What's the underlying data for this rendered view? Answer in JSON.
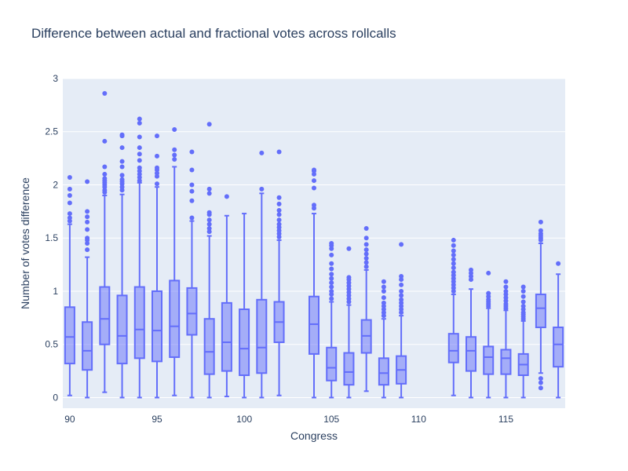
{
  "chart_data": {
    "type": "box",
    "title": "Difference between actual and fractional votes across rollcalls",
    "xlabel": "Congress",
    "ylabel": "Number of votes difference",
    "xlim": [
      89.6,
      118.4
    ],
    "ylim": [
      -0.1,
      3.0
    ],
    "xticks": [
      90,
      95,
      100,
      105,
      110,
      115
    ],
    "yticks": [
      0,
      0.5,
      1,
      1.5,
      2,
      2.5,
      3
    ],
    "ytick_labels": [
      "0",
      "0.5",
      "1",
      "1.5",
      "2",
      "2.5",
      "3"
    ],
    "grid": true,
    "colors": {
      "plot_bg": "#e5ecf6",
      "box_line": "#636efa",
      "box_fill": "rgba(99,110,250,0.5)",
      "text": "#2a3f5f",
      "grid": "#ffffff"
    },
    "boxes": [
      {
        "x": 90,
        "min": 0.02,
        "q1": 0.32,
        "median": 0.57,
        "q3": 0.85,
        "max": 1.63,
        "outliers": [
          1.66,
          1.69,
          1.73,
          1.83,
          1.9,
          1.96,
          2.07
        ]
      },
      {
        "x": 91,
        "min": 0.0,
        "q1": 0.26,
        "median": 0.44,
        "q3": 0.71,
        "max": 1.32,
        "outliers": [
          1.39,
          1.45,
          1.48,
          1.5,
          1.58,
          1.65,
          1.7,
          1.75,
          2.03
        ]
      },
      {
        "x": 92,
        "min": 0.05,
        "q1": 0.5,
        "median": 0.74,
        "q3": 1.04,
        "max": 1.9,
        "outliers": [
          1.93,
          1.95,
          1.98,
          2.0,
          2.02,
          2.04,
          2.06,
          2.1,
          2.17,
          2.41,
          2.86
        ]
      },
      {
        "x": 93,
        "min": 0.0,
        "q1": 0.32,
        "median": 0.58,
        "q3": 0.96,
        "max": 1.91,
        "outliers": [
          1.95,
          1.98,
          2.01,
          2.03,
          2.05,
          2.09,
          2.17,
          2.22,
          2.35,
          2.46,
          2.47
        ]
      },
      {
        "x": 94,
        "min": 0.0,
        "q1": 0.37,
        "median": 0.64,
        "q3": 1.04,
        "max": 2.02,
        "outliers": [
          2.04,
          2.07,
          2.1,
          2.13,
          2.16,
          2.23,
          2.29,
          2.35,
          2.45,
          2.58,
          2.62
        ]
      },
      {
        "x": 95,
        "min": 0.0,
        "q1": 0.34,
        "median": 0.63,
        "q3": 1.0,
        "max": 1.98,
        "outliers": [
          2.01,
          2.08,
          2.11,
          2.14,
          2.16,
          2.27,
          2.46
        ]
      },
      {
        "x": 96,
        "min": 0.02,
        "q1": 0.38,
        "median": 0.67,
        "q3": 1.1,
        "max": 2.17,
        "outliers": [
          2.24,
          2.28,
          2.33,
          2.52
        ]
      },
      {
        "x": 97,
        "min": 0.0,
        "q1": 0.59,
        "median": 0.79,
        "q3": 1.03,
        "max": 1.66,
        "outliers": [
          1.69,
          1.85,
          1.94,
          2.0,
          2.14,
          2.31
        ]
      },
      {
        "x": 98,
        "min": 0.0,
        "q1": 0.22,
        "median": 0.43,
        "q3": 0.74,
        "max": 1.52,
        "outliers": [
          1.56,
          1.59,
          1.63,
          1.67,
          1.72,
          1.74,
          1.92,
          1.96,
          2.57
        ]
      },
      {
        "x": 99,
        "min": 0.01,
        "q1": 0.25,
        "median": 0.52,
        "q3": 0.89,
        "max": 1.71,
        "outliers": [
          1.89
        ]
      },
      {
        "x": 100,
        "min": 0.0,
        "q1": 0.21,
        "median": 0.46,
        "q3": 0.83,
        "max": 1.73,
        "outliers": []
      },
      {
        "x": 101,
        "min": 0.0,
        "q1": 0.23,
        "median": 0.47,
        "q3": 0.92,
        "max": 1.92,
        "outliers": [
          1.96,
          2.3
        ]
      },
      {
        "x": 102,
        "min": 0.02,
        "q1": 0.52,
        "median": 0.71,
        "q3": 0.9,
        "max": 1.48,
        "outliers": [
          1.51,
          1.54,
          1.57,
          1.6,
          1.63,
          1.67,
          1.72,
          1.76,
          1.82,
          1.88,
          2.31
        ]
      },
      {
        "x": 104,
        "min": 0.0,
        "q1": 0.41,
        "median": 0.69,
        "q3": 0.95,
        "max": 1.73,
        "outliers": [
          1.78,
          1.81,
          1.97,
          2.04,
          2.1,
          2.13,
          2.14
        ]
      },
      {
        "x": 105,
        "min": 0.0,
        "q1": 0.16,
        "median": 0.28,
        "q3": 0.47,
        "max": 0.9,
        "outliers": [
          0.93,
          0.97,
          1.0,
          1.04,
          1.08,
          1.12,
          1.16,
          1.21,
          1.26,
          1.34,
          1.4,
          1.43,
          1.45
        ]
      },
      {
        "x": 106,
        "min": 0.0,
        "q1": 0.12,
        "median": 0.24,
        "q3": 0.42,
        "max": 0.87,
        "outliers": [
          0.9,
          0.93,
          0.96,
          0.99,
          1.02,
          1.05,
          1.08,
          1.11,
          1.13,
          1.4
        ]
      },
      {
        "x": 107,
        "min": 0.06,
        "q1": 0.42,
        "median": 0.58,
        "q3": 0.73,
        "max": 1.2,
        "outliers": [
          1.23,
          1.27,
          1.31,
          1.35,
          1.39,
          1.44,
          1.5,
          1.59
        ]
      },
      {
        "x": 108,
        "min": 0.0,
        "q1": 0.12,
        "median": 0.23,
        "q3": 0.37,
        "max": 0.74,
        "outliers": [
          0.77,
          0.8,
          0.83,
          0.86,
          0.89,
          0.94,
          1.0,
          1.04,
          1.09
        ]
      },
      {
        "x": 109,
        "min": 0.0,
        "q1": 0.13,
        "median": 0.26,
        "q3": 0.39,
        "max": 0.77,
        "outliers": [
          0.8,
          0.83,
          0.86,
          0.89,
          0.92,
          0.96,
          1.0,
          1.06,
          1.11,
          1.14,
          1.44
        ]
      },
      {
        "x": 112,
        "min": 0.02,
        "q1": 0.33,
        "median": 0.44,
        "q3": 0.6,
        "max": 0.97,
        "outliers": [
          1.0,
          1.03,
          1.06,
          1.09,
          1.12,
          1.15,
          1.18,
          1.22,
          1.26,
          1.3,
          1.34,
          1.38,
          1.43,
          1.48
        ]
      },
      {
        "x": 113,
        "min": 0.0,
        "q1": 0.25,
        "median": 0.44,
        "q3": 0.57,
        "max": 1.02,
        "outliers": [
          1.11,
          1.14,
          1.17,
          1.2
        ]
      },
      {
        "x": 114,
        "min": 0.0,
        "q1": 0.22,
        "median": 0.38,
        "q3": 0.48,
        "max": 0.84,
        "outliers": [
          0.86,
          0.88,
          0.9,
          0.92,
          0.95,
          0.98,
          1.17
        ]
      },
      {
        "x": 115,
        "min": 0.0,
        "q1": 0.22,
        "median": 0.37,
        "q3": 0.45,
        "max": 0.82,
        "outliers": [
          0.84,
          0.86,
          0.88,
          0.91,
          0.94,
          0.97,
          1.0,
          1.04,
          1.09
        ]
      },
      {
        "x": 116,
        "min": 0.0,
        "q1": 0.21,
        "median": 0.31,
        "q3": 0.41,
        "max": 0.72,
        "outliers": [
          0.74,
          0.76,
          0.78,
          0.8,
          0.83,
          0.86,
          0.9,
          0.95,
          1.0,
          1.04
        ]
      },
      {
        "x": 117,
        "min": 0.23,
        "q1": 0.66,
        "median": 0.84,
        "q3": 0.97,
        "max": 1.45,
        "outliers": [
          0.09,
          0.14,
          0.18,
          1.48,
          1.5,
          1.52,
          1.54,
          1.57,
          1.65
        ]
      },
      {
        "x": 118,
        "min": 0.0,
        "q1": 0.29,
        "median": 0.5,
        "q3": 0.66,
        "max": 1.16,
        "outliers": [
          1.26
        ]
      }
    ]
  }
}
